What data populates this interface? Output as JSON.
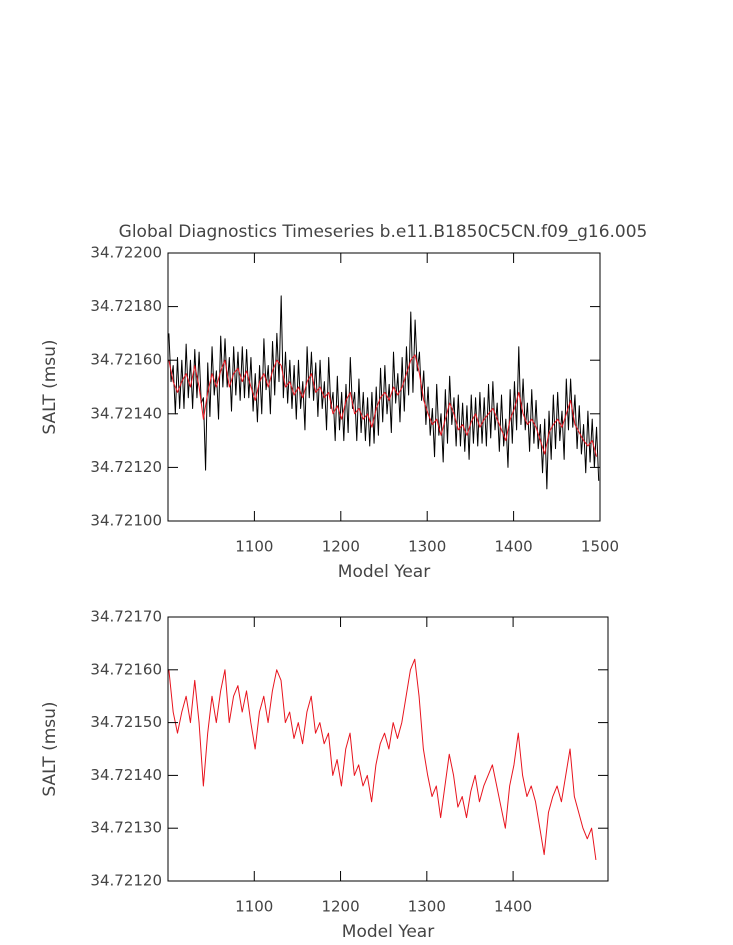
{
  "chart_data": [
    {
      "type": "line",
      "title": "Global Diagnostics Timeseries b.e11.B1850C5CN.f09_g16.005",
      "x_label": "Model Year",
      "y_label": "SALT (msu)",
      "xlim": [
        1000,
        1500
      ],
      "ylim": [
        34.721,
        34.722
      ],
      "xticks": [
        1100,
        1200,
        1300,
        1400,
        1500
      ],
      "yticks": [
        {
          "value": 34.721,
          "label": "34.72100"
        },
        {
          "value": 34.7212,
          "label": "34.72120"
        },
        {
          "value": 34.7214,
          "label": "34.72140"
        },
        {
          "value": 34.7216,
          "label": "34.72160"
        },
        {
          "value": 34.7218,
          "label": "34.72180"
        },
        {
          "value": 34.722,
          "label": "34.72200"
        }
      ],
      "series": [
        {
          "color": "#000000",
          "x": [
            1001,
            1003.5,
            1006,
            1008.5,
            1011,
            1013.5,
            1016,
            1018.5,
            1021,
            1023.5,
            1026,
            1028.5,
            1031,
            1033.5,
            1036,
            1038.5,
            1041,
            1043.5,
            1046,
            1048.5,
            1051,
            1053.5,
            1056,
            1058.5,
            1061,
            1063.5,
            1066,
            1068.5,
            1071,
            1073.5,
            1076,
            1078.5,
            1081,
            1083.5,
            1086,
            1088.5,
            1091,
            1093.5,
            1096,
            1098.5,
            1101,
            1103.5,
            1106,
            1108.5,
            1111,
            1113.5,
            1116,
            1118.5,
            1121,
            1123.5,
            1126,
            1128.5,
            1131,
            1133.5,
            1136,
            1138.5,
            1141,
            1143.5,
            1146,
            1148.5,
            1151,
            1153.5,
            1156,
            1158.5,
            1161,
            1163.5,
            1166,
            1168.5,
            1171,
            1173.5,
            1176,
            1178.5,
            1181,
            1183.5,
            1186,
            1188.5,
            1191,
            1193.5,
            1196,
            1198.5,
            1201,
            1203.5,
            1206,
            1208.5,
            1211,
            1213.5,
            1216,
            1218.5,
            1221,
            1223.5,
            1226,
            1228.5,
            1231,
            1233.5,
            1236,
            1238.5,
            1241,
            1243.5,
            1246,
            1248.5,
            1251,
            1253.5,
            1256,
            1258.5,
            1261,
            1263.5,
            1266,
            1268.5,
            1271,
            1273.5,
            1276,
            1278.5,
            1281,
            1283.5,
            1286,
            1288.5,
            1291,
            1293.5,
            1296,
            1298.5,
            1301,
            1303.5,
            1306,
            1308.5,
            1311,
            1313.5,
            1316,
            1318.5,
            1321,
            1323.5,
            1326,
            1328.5,
            1331,
            1333.5,
            1336,
            1338.5,
            1341,
            1343.5,
            1346,
            1348.5,
            1351,
            1353.5,
            1356,
            1358.5,
            1361,
            1363.5,
            1366,
            1368.5,
            1371,
            1373.5,
            1376,
            1378.5,
            1381,
            1383.5,
            1386,
            1388.5,
            1391,
            1393.5,
            1396,
            1398.5,
            1401,
            1403.5,
            1406,
            1408.5,
            1411,
            1413.5,
            1416,
            1418.5,
            1421,
            1423.5,
            1426,
            1428.5,
            1431,
            1433.5,
            1436,
            1438.5,
            1441,
            1443.5,
            1446,
            1448.5,
            1451,
            1453.5,
            1456,
            1458.5,
            1461,
            1463.5,
            1466,
            1468.5,
            1471,
            1473.5,
            1476,
            1478.5,
            1481,
            1483.5,
            1486,
            1488.5,
            1491,
            1493.5,
            1496,
            1498.5
          ],
          "values": [
            34.7217,
            34.72152,
            34.72158,
            34.7214,
            34.72161,
            34.72142,
            34.7216,
            34.72142,
            34.72166,
            34.72146,
            34.7216,
            34.72142,
            34.72164,
            34.72146,
            34.72163,
            34.72144,
            34.72146,
            34.72119,
            34.72159,
            34.72139,
            34.72165,
            34.72147,
            34.72156,
            34.72138,
            34.72169,
            34.7215,
            34.72168,
            34.7215,
            34.72161,
            34.72141,
            34.72165,
            34.72147,
            34.72163,
            34.72145,
            34.72165,
            34.72146,
            34.72164,
            34.72146,
            34.72161,
            34.72141,
            34.72155,
            34.72137,
            34.72158,
            34.7214,
            34.72168,
            34.72149,
            34.72158,
            34.7214,
            34.72167,
            34.72147,
            34.7217,
            34.72152,
            34.72184,
            34.72146,
            34.72163,
            34.72144,
            34.7216,
            34.72142,
            34.72158,
            34.72138,
            34.7216,
            34.72142,
            34.72152,
            34.72134,
            34.72165,
            34.72146,
            34.72163,
            34.72145,
            34.72159,
            34.72139,
            34.7216,
            34.72142,
            34.72152,
            34.72134,
            34.72161,
            34.72142,
            34.72148,
            34.7213,
            34.72154,
            34.72134,
            34.72148,
            34.7213,
            34.72151,
            34.72133,
            34.72161,
            34.72142,
            34.72148,
            34.7213,
            34.72153,
            34.72133,
            34.72148,
            34.7213,
            34.72146,
            34.72128,
            34.72148,
            34.72129,
            34.7215,
            34.72132,
            34.72157,
            34.72137,
            34.72158,
            34.7214,
            34.72151,
            34.72133,
            34.72163,
            34.72144,
            34.72155,
            34.72137,
            34.72161,
            34.72141,
            34.72165,
            34.72147,
            34.72178,
            34.72148,
            34.72175,
            34.72156,
            34.72163,
            34.72145,
            34.72156,
            34.72136,
            34.7215,
            34.72132,
            34.72142,
            34.72124,
            34.72151,
            34.72132,
            34.7214,
            34.72122,
            34.72149,
            34.72129,
            34.72154,
            34.72136,
            34.72146,
            34.72128,
            34.72147,
            34.72128,
            34.72144,
            34.72126,
            34.72143,
            34.72123,
            34.72147,
            34.72129,
            34.72146,
            34.72128,
            34.72148,
            34.72129,
            34.72146,
            34.72128,
            34.72151,
            34.72131,
            34.72152,
            34.72134,
            34.72144,
            34.72126,
            34.72147,
            34.72128,
            34.72138,
            34.7212,
            34.72149,
            34.72129,
            34.72152,
            34.72134,
            34.72165,
            34.72136,
            34.72153,
            34.72134,
            34.72144,
            34.72126,
            34.72149,
            34.72129,
            34.72145,
            34.72127,
            34.72136,
            34.72118,
            34.72138,
            34.72112,
            34.72141,
            34.72123,
            34.72147,
            34.72127,
            34.72148,
            34.7213,
            34.72141,
            34.72123,
            34.72153,
            34.72134,
            34.72153,
            34.72135,
            34.72147,
            34.72127,
            34.72143,
            34.72125,
            34.72136,
            34.72118,
            34.72141,
            34.72122,
            34.72138,
            34.7212,
            34.72135,
            34.72115
          ]
        },
        {
          "color": "#e8141e",
          "x": [
            1001,
            1006,
            1011,
            1016,
            1021,
            1026,
            1031,
            1036,
            1041,
            1046,
            1051,
            1056,
            1061,
            1066,
            1071,
            1076,
            1081,
            1086,
            1091,
            1096,
            1101,
            1106,
            1111,
            1116,
            1121,
            1126,
            1131,
            1136,
            1141,
            1146,
            1151,
            1156,
            1161,
            1166,
            1171,
            1176,
            1181,
            1186,
            1191,
            1196,
            1201,
            1206,
            1211,
            1216,
            1221,
            1226,
            1231,
            1236,
            1241,
            1246,
            1251,
            1256,
            1261,
            1266,
            1271,
            1276,
            1281,
            1286,
            1291,
            1296,
            1301,
            1306,
            1311,
            1316,
            1321,
            1326,
            1331,
            1336,
            1341,
            1346,
            1351,
            1356,
            1361,
            1366,
            1371,
            1376,
            1381,
            1386,
            1391,
            1396,
            1401,
            1406,
            1411,
            1416,
            1421,
            1426,
            1431,
            1436,
            1441,
            1446,
            1451,
            1456,
            1461,
            1466,
            1471,
            1476,
            1481,
            1486,
            1491,
            1496
          ],
          "values": [
            34.7216,
            34.72152,
            34.72148,
            34.72152,
            34.72155,
            34.7215,
            34.72158,
            34.7215,
            34.72138,
            34.72148,
            34.72155,
            34.7215,
            34.72156,
            34.7216,
            34.7215,
            34.72155,
            34.72157,
            34.72152,
            34.72156,
            34.7215,
            34.72145,
            34.72152,
            34.72155,
            34.7215,
            34.72156,
            34.7216,
            34.72158,
            34.7215,
            34.72152,
            34.72147,
            34.7215,
            34.72146,
            34.72152,
            34.72155,
            34.72148,
            34.7215,
            34.72146,
            34.72148,
            34.7214,
            34.72143,
            34.72138,
            34.72145,
            34.72148,
            34.7214,
            34.72142,
            34.72138,
            34.7214,
            34.72135,
            34.72142,
            34.72146,
            34.72148,
            34.72145,
            34.7215,
            34.72147,
            34.7215,
            34.72155,
            34.7216,
            34.72162,
            34.72155,
            34.72145,
            34.7214,
            34.72136,
            34.72138,
            34.72132,
            34.72138,
            34.72144,
            34.7214,
            34.72134,
            34.72136,
            34.72132,
            34.72137,
            34.7214,
            34.72135,
            34.72138,
            34.7214,
            34.72142,
            34.72138,
            34.72134,
            34.7213,
            34.72138,
            34.72142,
            34.72148,
            34.7214,
            34.72136,
            34.72138,
            34.72135,
            34.7213,
            34.72125,
            34.72133,
            34.72136,
            34.72138,
            34.72135,
            34.7214,
            34.72145,
            34.72136,
            34.72133,
            34.7213,
            34.72128,
            34.7213,
            34.72124
          ]
        }
      ]
    },
    {
      "type": "line",
      "x_label": "Model Year",
      "y_label": "SALT (msu)",
      "xlim": [
        1000,
        1510
      ],
      "ylim": [
        34.7212,
        34.7217
      ],
      "xticks": [
        1100,
        1200,
        1300,
        1400
      ],
      "yticks": [
        {
          "value": 34.7212,
          "label": "34.72120"
        },
        {
          "value": 34.7213,
          "label": "34.72130"
        },
        {
          "value": 34.7214,
          "label": "34.72140"
        },
        {
          "value": 34.7215,
          "label": "34.72150"
        },
        {
          "value": 34.7216,
          "label": "34.72160"
        },
        {
          "value": 34.7217,
          "label": "34.72170"
        }
      ],
      "series": [
        {
          "color": "#e8141e",
          "x": [
            1001,
            1006,
            1011,
            1016,
            1021,
            1026,
            1031,
            1036,
            1041,
            1046,
            1051,
            1056,
            1061,
            1066,
            1071,
            1076,
            1081,
            1086,
            1091,
            1096,
            1101,
            1106,
            1111,
            1116,
            1121,
            1126,
            1131,
            1136,
            1141,
            1146,
            1151,
            1156,
            1161,
            1166,
            1171,
            1176,
            1181,
            1186,
            1191,
            1196,
            1201,
            1206,
            1211,
            1216,
            1221,
            1226,
            1231,
            1236,
            1241,
            1246,
            1251,
            1256,
            1261,
            1266,
            1271,
            1276,
            1281,
            1286,
            1291,
            1296,
            1301,
            1306,
            1311,
            1316,
            1321,
            1326,
            1331,
            1336,
            1341,
            1346,
            1351,
            1356,
            1361,
            1366,
            1371,
            1376,
            1381,
            1386,
            1391,
            1396,
            1401,
            1406,
            1411,
            1416,
            1421,
            1426,
            1431,
            1436,
            1441,
            1446,
            1451,
            1456,
            1461,
            1466,
            1471,
            1476,
            1481,
            1486,
            1491,
            1496
          ],
          "values": [
            34.7216,
            34.72152,
            34.72148,
            34.72152,
            34.72155,
            34.7215,
            34.72158,
            34.7215,
            34.72138,
            34.72148,
            34.72155,
            34.7215,
            34.72156,
            34.7216,
            34.7215,
            34.72155,
            34.72157,
            34.72152,
            34.72156,
            34.7215,
            34.72145,
            34.72152,
            34.72155,
            34.7215,
            34.72156,
            34.7216,
            34.72158,
            34.7215,
            34.72152,
            34.72147,
            34.7215,
            34.72146,
            34.72152,
            34.72155,
            34.72148,
            34.7215,
            34.72146,
            34.72148,
            34.7214,
            34.72143,
            34.72138,
            34.72145,
            34.72148,
            34.7214,
            34.72142,
            34.72138,
            34.7214,
            34.72135,
            34.72142,
            34.72146,
            34.72148,
            34.72145,
            34.7215,
            34.72147,
            34.7215,
            34.72155,
            34.7216,
            34.72162,
            34.72155,
            34.72145,
            34.7214,
            34.72136,
            34.72138,
            34.72132,
            34.72138,
            34.72144,
            34.7214,
            34.72134,
            34.72136,
            34.72132,
            34.72137,
            34.7214,
            34.72135,
            34.72138,
            34.7214,
            34.72142,
            34.72138,
            34.72134,
            34.7213,
            34.72138,
            34.72142,
            34.72148,
            34.7214,
            34.72136,
            34.72138,
            34.72135,
            34.7213,
            34.72125,
            34.72133,
            34.72136,
            34.72138,
            34.72135,
            34.7214,
            34.72145,
            34.72136,
            34.72133,
            34.7213,
            34.72128,
            34.7213,
            34.72124
          ]
        }
      ]
    }
  ]
}
